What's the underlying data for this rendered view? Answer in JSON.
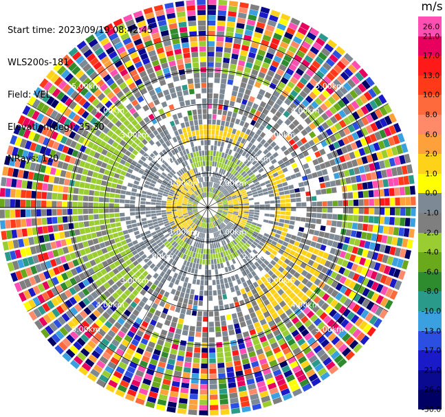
{
  "header": {
    "start_time": "Start time: 2023/09/19 08:42:45",
    "instrument": "WLS200s-181",
    "field": "Field: VEL",
    "elevation": "Elevation(deg): 35.30",
    "nrays": "NRays: 120"
  },
  "chart_data": {
    "type": "heatmap",
    "projection": "polar-ppi",
    "title": "",
    "n_rays": 120,
    "range_rings_km": [
      1.0,
      2.0,
      3.0,
      4.0,
      5.0
    ],
    "range_ring_labels": [
      "1.00km",
      "2.00km",
      "3.00km",
      "4.00km",
      "5.00km"
    ],
    "max_range_km": 6.05,
    "grid": true,
    "colorbar": {
      "unit": "m/s",
      "tick_labels": [
        "26.0",
        "21.0",
        "17.0",
        "13.0",
        "10.0",
        "8.0",
        "6.0",
        "2.0",
        "1.0",
        "0.0",
        "-1.0",
        "-2.0",
        "-4.0",
        "-6.0",
        "-8.0",
        "-10.0",
        "-13.0",
        "-17.0",
        "-21.0",
        "-26.0",
        "-30.0"
      ],
      "colors": [
        "#ff4fb3",
        "#e8005e",
        "#ff1a1a",
        "#ff3a18",
        "#ff6a3c",
        "#ff8a6a",
        "#ffa13a",
        "#ffd21a",
        "#ffff00",
        "#7d8a96",
        "#7f7f7f",
        "#9acd32",
        "#6aa81c",
        "#2e8b2e",
        "#2a9a8a",
        "#3aa0e0",
        "#2b4fe0",
        "#1a1ac8",
        "#0a0a90",
        "#000064"
      ]
    },
    "annotation": "Doppler velocity field; near-zero (grey) and weak (yellow / green) velocities within ~3 km, noisy multicolored returns beyond 4 km"
  }
}
